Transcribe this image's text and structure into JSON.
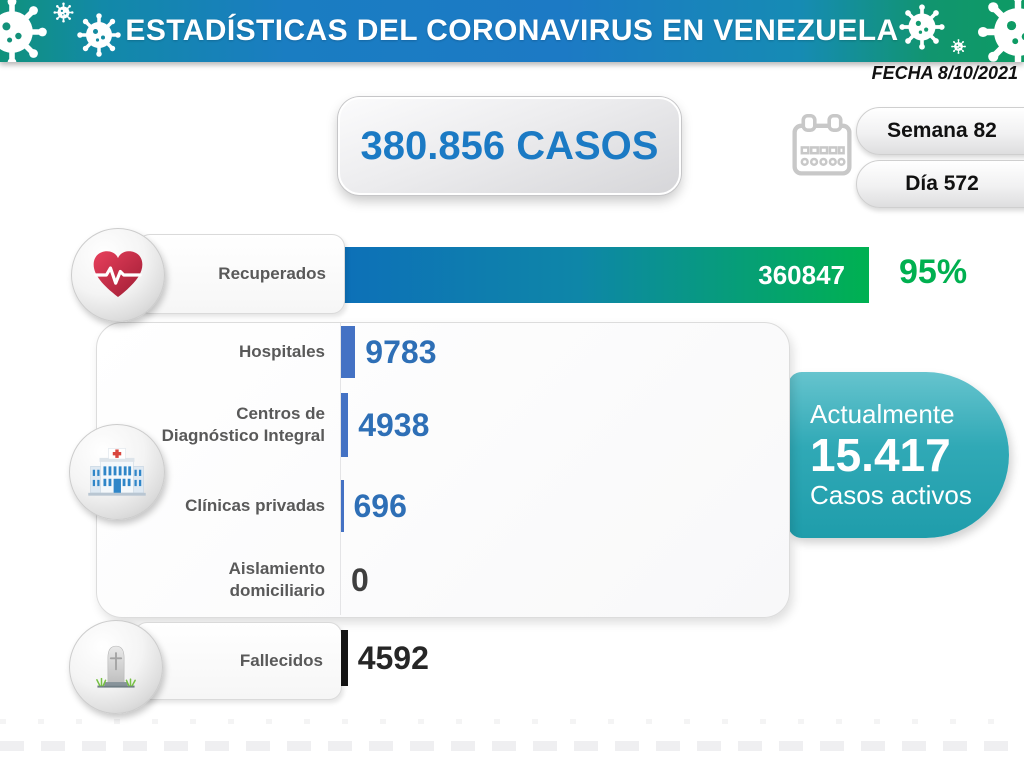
{
  "header": {
    "title": "ESTADÍSTICAS DEL CORONAVIRUS EN VENEZUELA"
  },
  "date": {
    "label": "FECHA 8/10/2021"
  },
  "summary": {
    "total_cases": "380.856 CASOS",
    "week": "Semana 82",
    "day": "Día 572"
  },
  "recovered": {
    "label": "Recuperados",
    "value": "360847",
    "percent": "95%"
  },
  "breakdown": {
    "rows": [
      {
        "label": "Hospitales",
        "value": "9783"
      },
      {
        "label": "Centros de\nDiagnóstico Integral",
        "value": "4938"
      },
      {
        "label": "Clínicas privadas",
        "value": "696"
      },
      {
        "label": "Aislamiento\ndomiciliario",
        "value": "0"
      }
    ]
  },
  "active": {
    "line1": "Actualmente",
    "value": "15.417",
    "line2": "Casos activos"
  },
  "deceased": {
    "label": "Fallecidos",
    "value": "4592"
  },
  "colors": {
    "title_blue": "#1b7ac4",
    "value_blue": "#2e6fb6",
    "bar_blue": "#4472c4",
    "recovered_gradient_start": "#0d70b8",
    "recovered_gradient_end": "#00b151",
    "percent_green": "#00b050",
    "active_teal": "#2aa6b3",
    "deceased_black": "#141414"
  },
  "chart_data": {
    "type": "bar",
    "orientation": "horizontal",
    "title": "ESTADÍSTICAS DEL CORONAVIRUS EN VENEZUELA",
    "date": "8/10/2021",
    "week": 82,
    "day": 572,
    "total_cases": 380856,
    "active_cases": 15417,
    "recovered_percent": 95,
    "categories": [
      "Recuperados",
      "Hospitales",
      "Centros de Diagnóstico Integral",
      "Clínicas privadas",
      "Aislamiento domiciliario",
      "Fallecidos"
    ],
    "values": [
      360847,
      9783,
      4938,
      696,
      0,
      4592
    ],
    "value_axis_max": 360847,
    "legend": "none",
    "grid": "off"
  }
}
